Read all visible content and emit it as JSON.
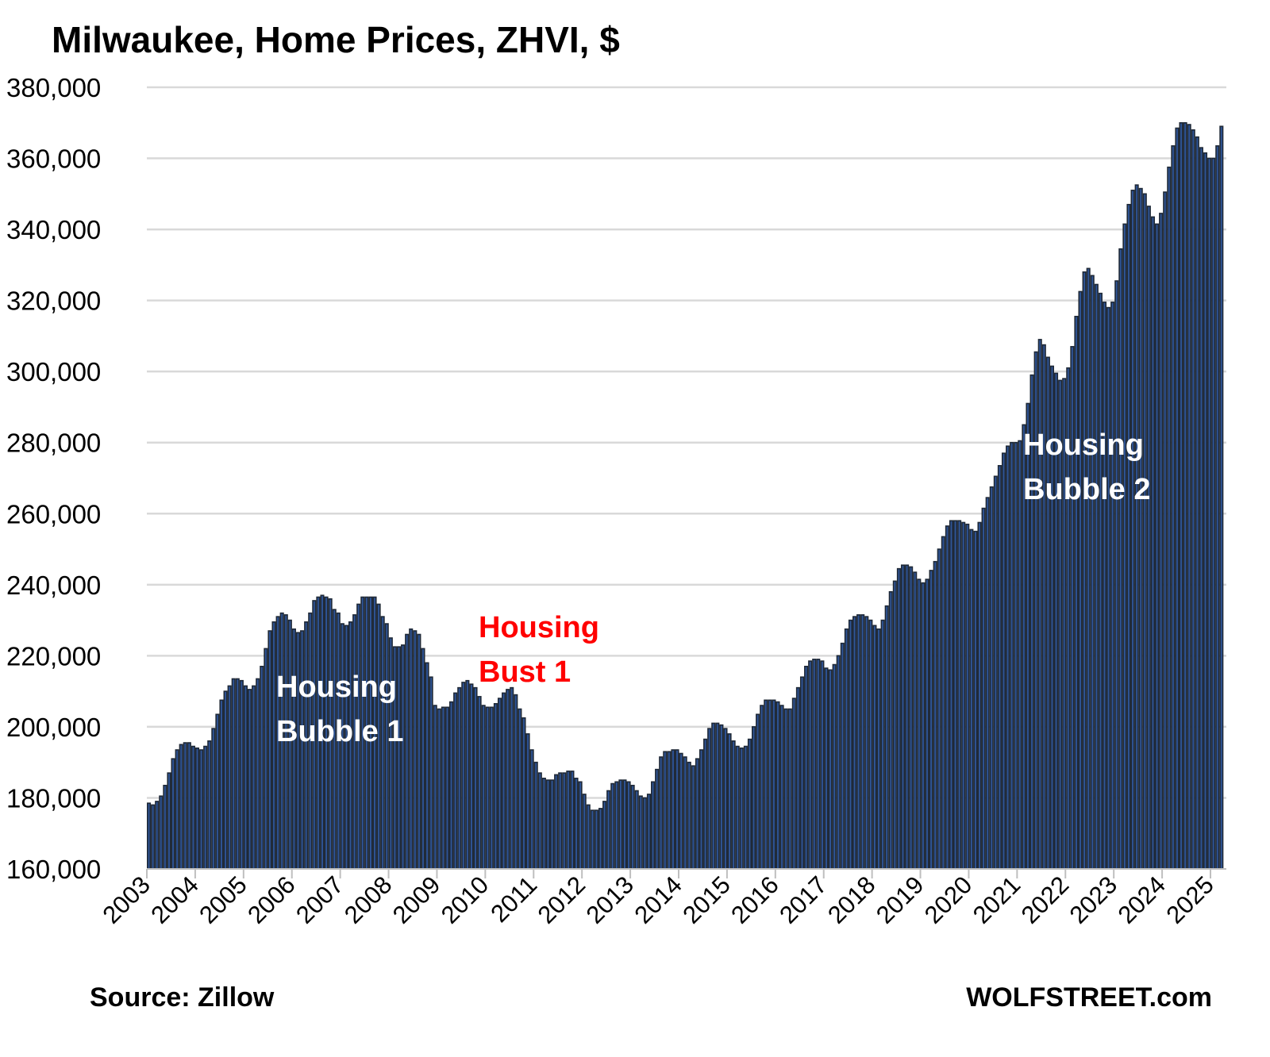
{
  "chart_data": {
    "type": "bar",
    "title": "Milwaukee, Home Prices, ZHVI, $",
    "xlabel": "",
    "ylabel": "",
    "x_start": "2003-01",
    "frequency": "monthly",
    "ylim": [
      160000,
      380000
    ],
    "grid": true,
    "legend": "none",
    "y_ticks": [
      "160,000",
      "180,000",
      "200,000",
      "220,000",
      "240,000",
      "260,000",
      "280,000",
      "300,000",
      "320,000",
      "340,000",
      "360,000",
      "380,000"
    ],
    "x_ticks": [
      "2003",
      "2004",
      "2005",
      "2006",
      "2007",
      "2008",
      "2009",
      "2010",
      "2011",
      "2012",
      "2013",
      "2014",
      "2015",
      "2016",
      "2017",
      "2018",
      "2019",
      "2020",
      "2021",
      "2022",
      "2023",
      "2024",
      "2025"
    ],
    "values": [
      178500,
      178000,
      179000,
      180500,
      183500,
      187000,
      191000,
      193500,
      195000,
      195500,
      195500,
      194500,
      194000,
      193500,
      194500,
      196000,
      199500,
      203500,
      207500,
      210000,
      211500,
      213500,
      213500,
      213000,
      211500,
      210500,
      211500,
      213500,
      217000,
      222000,
      227000,
      229500,
      231000,
      232000,
      231500,
      230000,
      227500,
      226500,
      227000,
      229500,
      232000,
      235500,
      236500,
      237000,
      236500,
      236000,
      233000,
      232000,
      229000,
      228500,
      229500,
      231500,
      234500,
      236500,
      236500,
      236500,
      236500,
      234500,
      231000,
      229000,
      225000,
      222500,
      222500,
      223000,
      226000,
      227500,
      227000,
      226000,
      222000,
      218000,
      214000,
      206000,
      205000,
      205500,
      205500,
      207000,
      209500,
      211000,
      212500,
      213000,
      212000,
      211000,
      208500,
      206000,
      205500,
      205500,
      206500,
      208000,
      209500,
      210500,
      211000,
      209000,
      205000,
      202500,
      198000,
      193500,
      190000,
      187000,
      185500,
      185000,
      185000,
      186500,
      187000,
      187000,
      187500,
      187500,
      185500,
      184500,
      181000,
      178000,
      176500,
      176500,
      177000,
      179000,
      182000,
      184000,
      184500,
      185000,
      185000,
      184500,
      183500,
      182000,
      180500,
      180000,
      181000,
      184500,
      188000,
      191500,
      193000,
      193000,
      193500,
      193500,
      192500,
      191500,
      190000,
      189000,
      191000,
      193500,
      196500,
      199500,
      201000,
      201000,
      200500,
      199500,
      198000,
      196000,
      194500,
      194000,
      194500,
      196500,
      200000,
      203500,
      206000,
      207500,
      207500,
      207500,
      207000,
      206000,
      205000,
      205000,
      208000,
      211000,
      214000,
      217000,
      218500,
      219000,
      219000,
      218500,
      216500,
      216000,
      217500,
      220000,
      223500,
      227500,
      230000,
      231000,
      231500,
      231500,
      231000,
      230000,
      228500,
      227500,
      230000,
      234000,
      238000,
      241000,
      244500,
      245500,
      245500,
      245000,
      243500,
      241500,
      240500,
      241500,
      244000,
      246500,
      250000,
      253500,
      256500,
      258000,
      258000,
      258000,
      257500,
      257000,
      255500,
      255000,
      257500,
      261500,
      264500,
      267500,
      270500,
      273500,
      277000,
      279000,
      280000,
      280000,
      280500,
      285000,
      291000,
      299000,
      305500,
      309000,
      307500,
      304000,
      301500,
      299500,
      297500,
      298000,
      301000,
      307000,
      315500,
      322500,
      328000,
      329000,
      327000,
      324500,
      322000,
      319500,
      318000,
      319500,
      325500,
      334500,
      341500,
      347000,
      351000,
      352500,
      351500,
      350000,
      346500,
      343500,
      341500,
      344500,
      350500,
      357500,
      363500,
      368500,
      370000,
      370000,
      369500,
      368000,
      366000,
      363000,
      361500,
      360000,
      360000,
      363500,
      369000
    ],
    "annotations": [
      {
        "lines": [
          "Housing",
          "Bubble 1"
        ],
        "color": "#ffffff"
      },
      {
        "lines": [
          "Housing",
          "Bust 1"
        ],
        "color": "#ff0000"
      },
      {
        "lines": [
          "Housing",
          "Bubble 2"
        ],
        "color": "#ffffff"
      }
    ],
    "bar_fill": "#2f5597",
    "bar_outline": "#1f2937",
    "grid_color": "#d9d9d9"
  },
  "footer": {
    "source": "Source: Zillow",
    "brand": "WOLFSTREET.com"
  }
}
